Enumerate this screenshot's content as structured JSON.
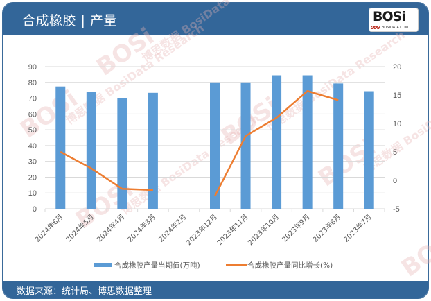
{
  "header": {
    "title": "合成橡胶 | 产量",
    "logo_mark": "BOSi",
    "logo_sub": "BOSIDATA.COM"
  },
  "footer": {
    "source": "数据来源：统计局、博思数据整理"
  },
  "colors": {
    "header_bg": "#336699",
    "bar": "#5b9bd5",
    "line": "#ed7d31",
    "grid": "#d9d9d9",
    "tick_text": "#595959"
  },
  "watermark": {
    "text_cn": "博思数据",
    "text_en": "BosiData Research",
    "logo": "BOSi"
  },
  "chart_data": {
    "type": "bar+line",
    "title": "合成橡胶 | 产量",
    "categories": [
      "2024年6月",
      "2024年5月",
      "2024年4月",
      "2024年3月",
      "2024年2月",
      "2023年12月",
      "2023年11月",
      "2023年10月",
      "2023年9月",
      "2023年8月",
      "2023年7月"
    ],
    "series": [
      {
        "name": "合成橡胶产量当期值(万吨)",
        "type": "bar",
        "axis": "left",
        "values": [
          77.4,
          73.8,
          69.9,
          73.4,
          null,
          80.0,
          80.0,
          84.5,
          84.5,
          79.3,
          74.4
        ]
      },
      {
        "name": "合成橡胶产量同比增长(%)",
        "type": "line",
        "axis": "right",
        "values": [
          5.0,
          2.1,
          -1.5,
          -1.7,
          null,
          -2.8,
          7.8,
          11.0,
          15.7,
          14.1,
          null
        ]
      }
    ],
    "left_axis": {
      "min": 0,
      "max": 90,
      "step": 10,
      "ticks": [
        "0",
        "10",
        "20",
        "30",
        "40",
        "50",
        "60",
        "70",
        "80",
        "90"
      ]
    },
    "right_axis": {
      "min": -5,
      "max": 20,
      "step": 5,
      "ticks": [
        "-5",
        "0",
        "5",
        "10",
        "15",
        "20"
      ]
    },
    "xlabel": "",
    "ylabel": "",
    "grid": true,
    "legend_position": "bottom"
  }
}
